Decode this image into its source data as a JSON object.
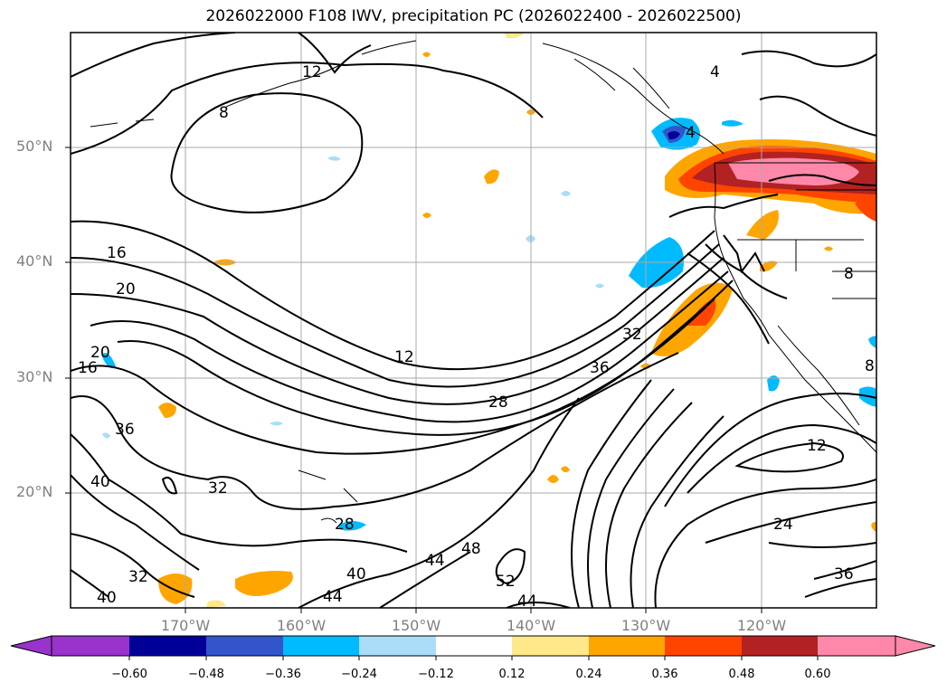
{
  "title": "2026022000 F108 IWV, precipitation PC (2026022400 - 2026022500)",
  "map": {
    "lat_labels": [
      "50°N",
      "40°N",
      "30°N",
      "20°N"
    ],
    "lon_labels": [
      "170°W",
      "160°W",
      "150°W",
      "140°W",
      "130°W",
      "120°W"
    ],
    "contour_labels": [
      "4",
      "4",
      "8",
      "8",
      "8",
      "12",
      "12",
      "12",
      "16",
      "16",
      "20",
      "20",
      "24",
      "28",
      "28",
      "32",
      "32",
      "32",
      "36",
      "36",
      "36",
      "40",
      "40",
      "40",
      "44",
      "44",
      "44",
      "48",
      "52"
    ]
  },
  "colorbar": {
    "ticks": [
      "−0.60",
      "−0.48",
      "−0.36",
      "−0.24",
      "−0.12",
      "0.12",
      "0.24",
      "0.36",
      "0.48",
      "0.60"
    ],
    "colors": [
      "#9933cc",
      "#000099",
      "#3355cc",
      "#00bbff",
      "#aaddf8",
      "#ffffff",
      "#ffe88a",
      "#ffa500",
      "#ff4400",
      "#b22222",
      "#ff88aa",
      "#ff88aa"
    ]
  }
}
